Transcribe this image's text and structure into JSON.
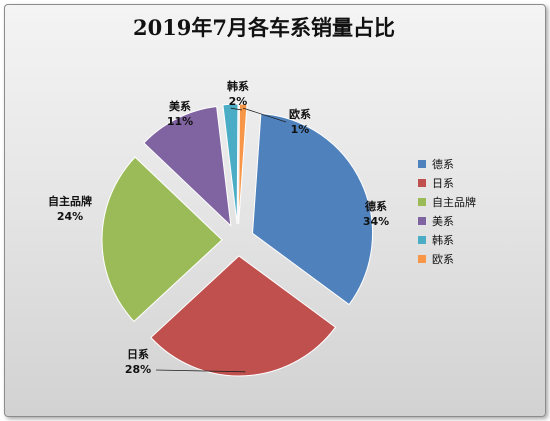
{
  "chart_data": {
    "type": "pie",
    "title": "2019年7月各车系销量占比",
    "categories": [
      "德系",
      "日系",
      "自主品牌",
      "美系",
      "韩系",
      "欧系"
    ],
    "values": [
      34,
      28,
      24,
      11,
      2,
      1
    ],
    "value_labels": [
      "34%",
      "28%",
      "24%",
      "11%",
      "2%",
      "1%"
    ],
    "colors": [
      "#4f81bd",
      "#c0504d",
      "#9bbb59",
      "#8064a2",
      "#4bacc6",
      "#f79646"
    ],
    "exploded": true,
    "legend": {
      "position": "right",
      "entries": [
        "德系",
        "日系",
        "自主品牌",
        "美系",
        "韩系",
        "欧系"
      ]
    }
  }
}
